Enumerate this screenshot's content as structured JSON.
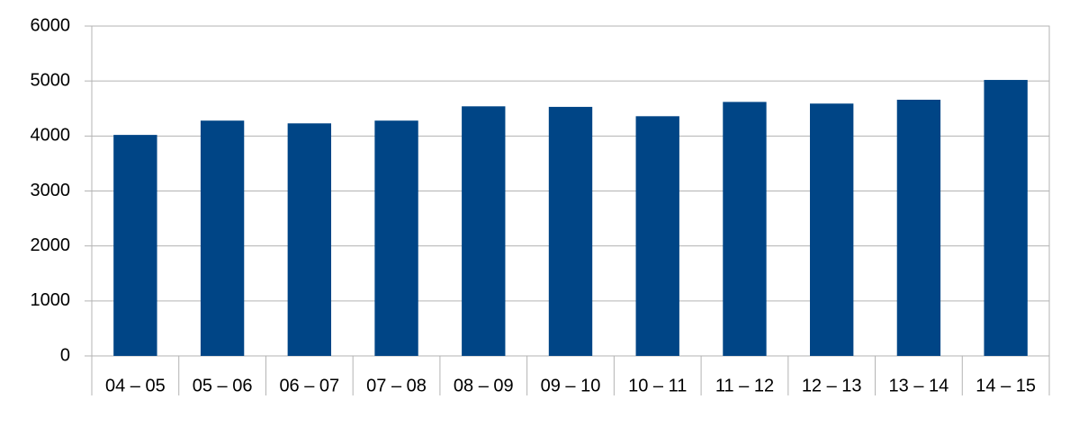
{
  "chart_data": {
    "type": "bar",
    "categories": [
      "04 – 05",
      "05 – 06",
      "06 – 07",
      "07 – 08",
      "08 – 09",
      "09 – 10",
      "10 – 11",
      "11 – 12",
      "12 – 13",
      "13 – 14",
      "14 – 15"
    ],
    "values": [
      4020,
      4280,
      4230,
      4280,
      4540,
      4530,
      4360,
      4620,
      4590,
      4660,
      5020
    ],
    "color": "#004586",
    "ylim": [
      0,
      6000
    ],
    "yticks": [
      0,
      1000,
      2000,
      3000,
      4000,
      5000,
      6000
    ],
    "grid": true
  }
}
